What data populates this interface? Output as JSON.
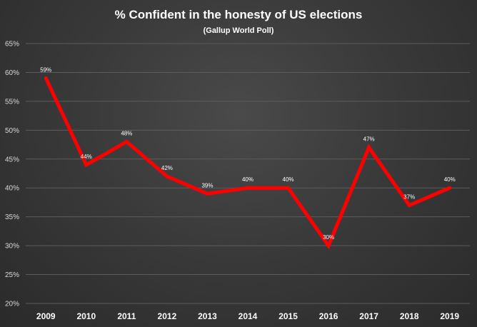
{
  "chart_data": {
    "type": "line",
    "title": "% Confident in the honesty of US elections",
    "subtitle": "(Gallup World Poll)",
    "xlabel": "",
    "ylabel": "",
    "categories": [
      "2009",
      "2010",
      "2011",
      "2012",
      "2013",
      "2014",
      "2015",
      "2016",
      "2017",
      "2018",
      "2019"
    ],
    "series": [
      {
        "name": "% Confident",
        "values": [
          59,
          44,
          48,
          42,
          39,
          40,
          40,
          30,
          47,
          37,
          40
        ],
        "data_labels": [
          "59%",
          "44%",
          "48%",
          "42%",
          "39%",
          "40%",
          "40%",
          "30%",
          "47%",
          "37%",
          "40%"
        ]
      }
    ],
    "ylim": [
      20,
      65
    ],
    "yticks": [
      20,
      25,
      30,
      35,
      40,
      45,
      50,
      55,
      60,
      65
    ],
    "ytick_labels": [
      "20%",
      "25%",
      "30%",
      "35%",
      "40%",
      "45%",
      "50%",
      "55%",
      "60%",
      "65%"
    ],
    "grid": true,
    "legend": "none",
    "colors": {
      "line": "#ff0000",
      "background": "#3a3a3a",
      "grid": "#5c5c5c",
      "text": "#ffffff",
      "axis_text": "#d9d9d9"
    }
  }
}
